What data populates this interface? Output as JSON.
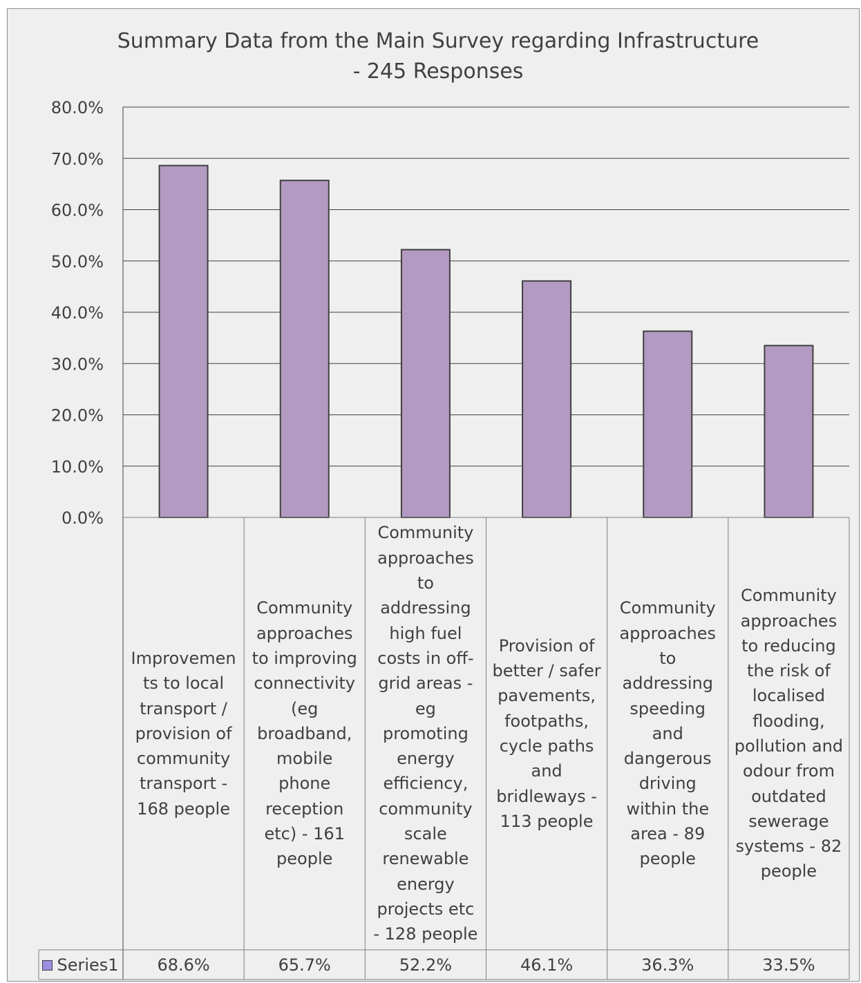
{
  "chart_data": {
    "type": "bar",
    "title_lines": [
      "Summary Data from the Main Survey regarding Infrastructure",
      "- 245 Responses"
    ],
    "categories": [
      "Improvemen ts to local transport / provision of community transport - 168 people",
      "Community approaches to improving connectivity (eg broadband, mobile phone reception etc) - 161 people",
      "Community approaches to addressing high fuel costs in off- grid areas - eg promoting energy efficiency, community scale renewable energy projects etc - 128 people",
      "Provision of better / safer pavements, footpaths, cycle paths and bridleways - 113 people",
      "Community approaches to addressing speeding and dangerous driving within the area - 89 people",
      "Community approaches to reducing the risk of localised flooding, pollution and odour from outdated sewerage systems - 82 people"
    ],
    "category_lines": [
      [
        "Improvemen",
        "ts to local",
        "transport /",
        "provision of",
        "community",
        "transport -",
        "168  people"
      ],
      [
        "Community",
        "approaches",
        "to improving",
        "connectivity",
        "(eg",
        "broadband,",
        "mobile",
        "phone",
        "reception",
        "etc) - 161",
        "people"
      ],
      [
        "Community",
        "approaches",
        "to",
        "addressing",
        "high fuel",
        "costs in off-",
        "grid areas -",
        "eg",
        "promoting",
        "energy",
        "efficiency,",
        "community",
        "scale",
        "renewable",
        "energy",
        "projects etc",
        "- 128 people"
      ],
      [
        "Provision of",
        "better / safer",
        "pavements,",
        "footpaths,",
        "cycle paths",
        "and",
        "bridleways -",
        "113 people"
      ],
      [
        "Community",
        "approaches",
        "to",
        "addressing",
        "speeding",
        "and",
        "dangerous",
        "driving",
        "within the",
        "area - 89",
        "people"
      ],
      [
        "Community",
        "approaches",
        "to reducing",
        "the risk of",
        "localised",
        "flooding,",
        "pollution and",
        "odour from",
        "outdated",
        "sewerage",
        "systems  - 82",
        "people"
      ]
    ],
    "series": [
      {
        "name": "Series1",
        "values": [
          68.6,
          65.7,
          52.2,
          46.1,
          36.3,
          33.5
        ],
        "value_labels": [
          "68.6%",
          "65.7%",
          "52.2%",
          "46.1%",
          "36.3%",
          "33.5%"
        ]
      }
    ],
    "ylim": [
      0,
      80
    ],
    "yticks": [
      0,
      10,
      20,
      30,
      40,
      50,
      60,
      70,
      80
    ],
    "ytick_labels": [
      "0.0%",
      "10.0%",
      "20.0%",
      "30.0%",
      "40.0%",
      "50.0%",
      "60.0%",
      "70.0%",
      "80.0%"
    ],
    "grid": true,
    "data_table": true,
    "colors": {
      "bar_fill": "#b39ac2",
      "bar_stroke": "#404040",
      "legend_key": "#9b8fe0",
      "background": "#efefef",
      "grid": "#404040"
    }
  }
}
